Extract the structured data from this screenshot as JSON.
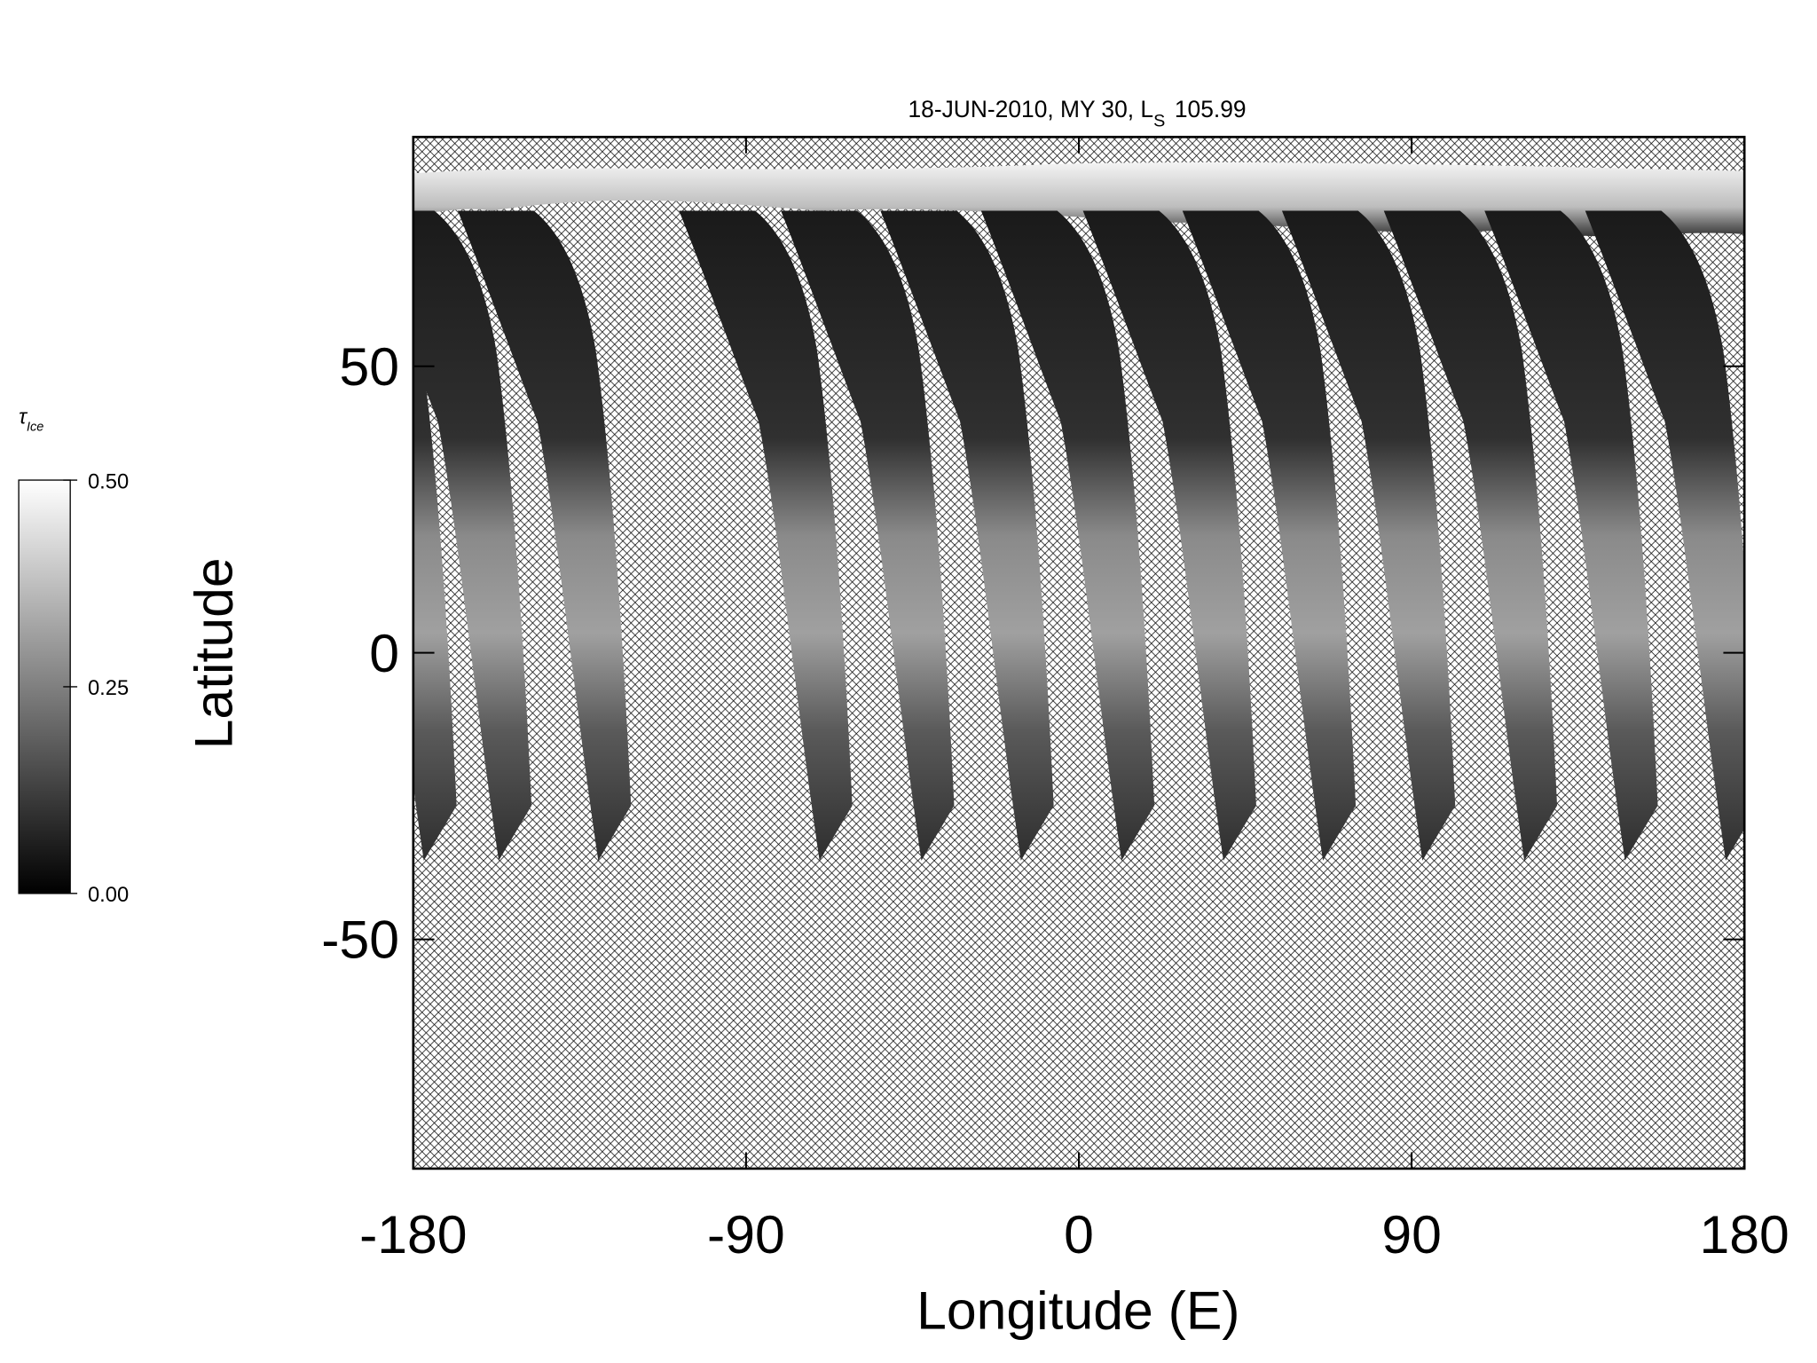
{
  "chart_data": {
    "type": "map",
    "title": "18-JUN-2010, MY 30,  L",
    "title_subscript": "S",
    "title_end": "105.99",
    "xlabel": "Longitude (E)",
    "ylabel": "Latitude",
    "xlim": [
      -180,
      180
    ],
    "ylim": [
      -90,
      90
    ],
    "xticks": [
      -180,
      -90,
      0,
      90,
      180
    ],
    "yticks": [
      -50,
      0,
      50
    ],
    "colorbar": {
      "label": "τ",
      "label_subscript": "Ice",
      "lim": [
        0,
        0.5
      ],
      "ticks": [
        {
          "value": 0,
          "label": "0.00"
        },
        {
          "value": 0.25,
          "label": "0.25"
        },
        {
          "value": 0.5,
          "label": "0.50"
        }
      ],
      "colors": [
        "#000000",
        "#ffffff"
      ]
    }
  }
}
